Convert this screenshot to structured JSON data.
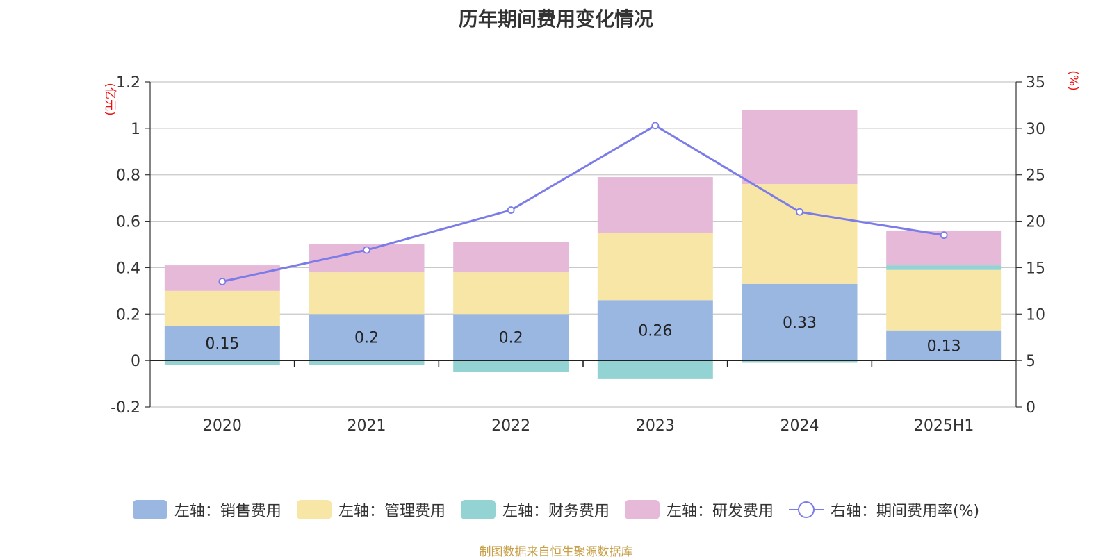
{
  "chart_data": {
    "type": "bar",
    "title": "历年期间费用变化情况",
    "source": "制图数据来自恒生聚源数据库",
    "left_unit": "(亿元)",
    "right_unit": "(%)",
    "categories": [
      "2020",
      "2021",
      "2022",
      "2023",
      "2024",
      "2025H1"
    ],
    "left_axis": {
      "min": -0.2,
      "max": 1.2,
      "ticks": [
        "-0.2",
        "0",
        "0.2",
        "0.4",
        "0.6",
        "0.8",
        "1",
        "1.2"
      ]
    },
    "right_axis": {
      "min": 0,
      "max": 35,
      "ticks": [
        "0",
        "5",
        "10",
        "15",
        "20",
        "25",
        "30",
        "35"
      ]
    },
    "series": [
      {
        "name": "左轴：销售费用",
        "type": "bar",
        "axis": "left",
        "color": "#9ab7e2",
        "values": [
          0.15,
          0.2,
          0.2,
          0.26,
          0.33,
          0.13
        ],
        "labels": [
          "0.15",
          "0.2",
          "0.2",
          "0.26",
          "0.33",
          "0.13"
        ]
      },
      {
        "name": "左轴：管理费用",
        "type": "bar",
        "axis": "left",
        "color": "#f8e6a6",
        "values": [
          0.15,
          0.18,
          0.18,
          0.29,
          0.43,
          0.26
        ]
      },
      {
        "name": "左轴：财务费用",
        "type": "bar",
        "axis": "left",
        "color": "#94d3d4",
        "values": [
          -0.02,
          -0.02,
          -0.05,
          -0.08,
          -0.01,
          0.02
        ]
      },
      {
        "name": "左轴：研发费用",
        "type": "bar",
        "axis": "left",
        "color": "#e7b9d9",
        "values": [
          0.11,
          0.12,
          0.13,
          0.24,
          0.32,
          0.15
        ]
      },
      {
        "name": "右轴：期间费用率(%)",
        "type": "line",
        "axis": "right",
        "color": "#7b7ce8",
        "values": [
          13.5,
          16.9,
          21.2,
          30.3,
          21.0,
          18.5
        ]
      }
    ],
    "grid": true,
    "legend": "bottom"
  }
}
